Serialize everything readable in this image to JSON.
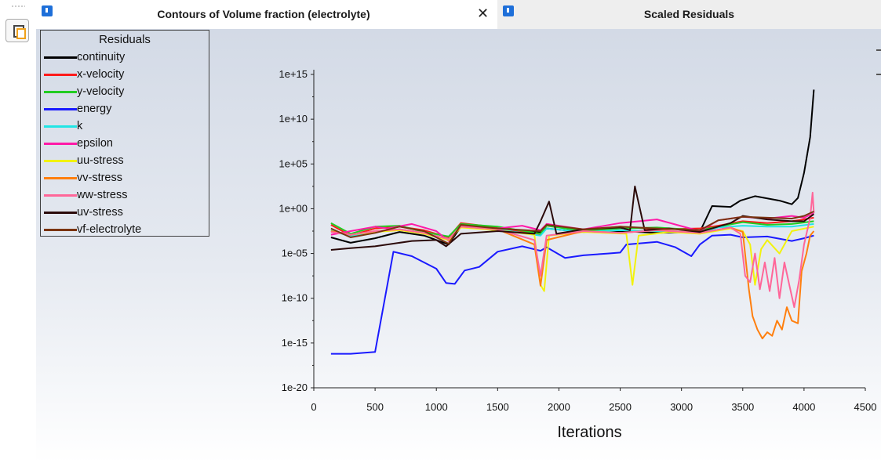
{
  "tabs": [
    {
      "title": "Contours of Volume fraction (electrolyte)",
      "active": true,
      "closable": true,
      "icon": "fluent-window-icon"
    },
    {
      "title": "Scaled Residuals",
      "active": false,
      "icon": "fluent-window-icon"
    }
  ],
  "toolbar": {
    "icon": "copy-windows-icon"
  },
  "colors": {
    "continuity": "#000000",
    "x-velocity": "#ff1a1a",
    "y-velocity": "#22cc22",
    "energy": "#1a1aff",
    "k": "#22e5e5",
    "epsilon": "#ff1aa8",
    "uu-stress": "#f2f20d",
    "vv-stress": "#ff7f0e",
    "ww-stress": "#ff6699",
    "uv-stress": "#2b0a0a",
    "vf-electrolyte": "#7a3310"
  },
  "chart_data": {
    "type": "line",
    "legend_title": "Residuals",
    "legend_position": "top-left",
    "xlabel": "Iterations",
    "ylabel": "",
    "xlim": [
      0,
      4500
    ],
    "y_scale": "log",
    "ylim_exponent": [
      -20,
      16
    ],
    "x_ticks": [
      "0",
      "500",
      "1000",
      "1500",
      "2000",
      "2500",
      "3000",
      "3500",
      "4000",
      "4500"
    ],
    "y_ticks": [
      "1e-20",
      "1e-15",
      "1e-10",
      "1e-05",
      "1e+00",
      "1e+05",
      "1e+10",
      "1e+15"
    ],
    "y_tick_exponents": [
      -20,
      -15,
      -10,
      -5,
      0,
      5,
      10,
      15
    ],
    "x_tick_values": [
      0,
      500,
      1000,
      1500,
      2000,
      2500,
      3000,
      3500,
      4000,
      4500
    ],
    "series": [
      {
        "name": "continuity",
        "points": [
          [
            140,
            -3.2
          ],
          [
            300,
            -3.8
          ],
          [
            500,
            -3.3
          ],
          [
            700,
            -2.6
          ],
          [
            900,
            -3.0
          ],
          [
            1100,
            -4.0
          ],
          [
            1200,
            -2.0
          ],
          [
            1500,
            -2.4
          ],
          [
            1850,
            -2.6
          ],
          [
            1900,
            -2.2
          ],
          [
            2200,
            -2.6
          ],
          [
            2500,
            -2.5
          ],
          [
            2800,
            -2.7
          ],
          [
            3150,
            -2.6
          ],
          [
            3250,
            0.3
          ],
          [
            3400,
            0.2
          ],
          [
            3480,
            0.9
          ],
          [
            3600,
            1.4
          ],
          [
            3800,
            0.9
          ],
          [
            3900,
            0.5
          ],
          [
            3950,
            1.2
          ],
          [
            4000,
            4.0
          ],
          [
            4050,
            8.0
          ],
          [
            4080,
            13.3
          ]
        ]
      },
      {
        "name": "x-velocity",
        "points": [
          [
            140,
            -1.8
          ],
          [
            300,
            -3.0
          ],
          [
            500,
            -2.2
          ],
          [
            700,
            -2.0
          ],
          [
            900,
            -2.4
          ],
          [
            1100,
            -3.2
          ],
          [
            1200,
            -1.6
          ],
          [
            1500,
            -2.1
          ],
          [
            1850,
            -2.9
          ],
          [
            1900,
            -1.7
          ],
          [
            2200,
            -2.4
          ],
          [
            2500,
            -2.0
          ],
          [
            2800,
            -2.3
          ],
          [
            3150,
            -2.2
          ],
          [
            3300,
            -1.9
          ],
          [
            3500,
            -1.4
          ],
          [
            3700,
            -1.6
          ],
          [
            3900,
            -1.4
          ],
          [
            4080,
            -1.0
          ]
        ]
      },
      {
        "name": "y-velocity",
        "points": [
          [
            140,
            -1.6
          ],
          [
            300,
            -2.8
          ],
          [
            500,
            -2.0
          ],
          [
            700,
            -1.9
          ],
          [
            900,
            -2.6
          ],
          [
            1100,
            -3.1
          ],
          [
            1200,
            -1.7
          ],
          [
            1500,
            -2.0
          ],
          [
            1850,
            -2.8
          ],
          [
            1900,
            -1.9
          ],
          [
            2200,
            -2.5
          ],
          [
            2500,
            -2.2
          ],
          [
            2800,
            -2.1
          ],
          [
            3150,
            -2.4
          ],
          [
            3300,
            -2.0
          ],
          [
            3500,
            -1.5
          ],
          [
            3700,
            -1.8
          ],
          [
            3900,
            -1.7
          ],
          [
            4080,
            -1.4
          ]
        ]
      },
      {
        "name": "energy",
        "points": [
          [
            140,
            -16.2
          ],
          [
            300,
            -16.2
          ],
          [
            500,
            -16.0
          ],
          [
            650,
            -4.8
          ],
          [
            800,
            -5.3
          ],
          [
            1000,
            -6.7
          ],
          [
            1080,
            -8.3
          ],
          [
            1150,
            -8.4
          ],
          [
            1230,
            -6.9
          ],
          [
            1350,
            -6.5
          ],
          [
            1500,
            -4.8
          ],
          [
            1700,
            -4.2
          ],
          [
            1850,
            -4.7
          ],
          [
            1900,
            -4.3
          ],
          [
            2050,
            -5.5
          ],
          [
            2200,
            -5.2
          ],
          [
            2400,
            -5.0
          ],
          [
            2500,
            -4.9
          ],
          [
            2550,
            -4.0
          ],
          [
            2800,
            -3.7
          ],
          [
            2950,
            -4.3
          ],
          [
            3080,
            -5.3
          ],
          [
            3150,
            -4.0
          ],
          [
            3250,
            -3.0
          ],
          [
            3400,
            -2.9
          ],
          [
            3500,
            -3.2
          ],
          [
            3700,
            -3.1
          ],
          [
            3900,
            -3.6
          ],
          [
            4000,
            -3.3
          ],
          [
            4080,
            -3.0
          ]
        ]
      },
      {
        "name": "k",
        "points": [
          [
            140,
            -2.4
          ],
          [
            300,
            -3.1
          ],
          [
            500,
            -2.5
          ],
          [
            700,
            -2.3
          ],
          [
            900,
            -2.7
          ],
          [
            1100,
            -3.4
          ],
          [
            1200,
            -2.0
          ],
          [
            1500,
            -2.3
          ],
          [
            1850,
            -3.0
          ],
          [
            1900,
            -2.2
          ],
          [
            2200,
            -2.6
          ],
          [
            2500,
            -2.4
          ],
          [
            2800,
            -2.5
          ],
          [
            3150,
            -2.7
          ],
          [
            3300,
            -2.1
          ],
          [
            3500,
            -1.9
          ],
          [
            3700,
            -2.0
          ],
          [
            3900,
            -2.0
          ],
          [
            4080,
            -1.7
          ]
        ]
      },
      {
        "name": "epsilon",
        "points": [
          [
            140,
            -2.9
          ],
          [
            300,
            -2.5
          ],
          [
            500,
            -2.0
          ],
          [
            600,
            -2.2
          ],
          [
            800,
            -1.7
          ],
          [
            1000,
            -2.5
          ],
          [
            1100,
            -3.6
          ],
          [
            1200,
            -1.9
          ],
          [
            1500,
            -2.2
          ],
          [
            1700,
            -1.9
          ],
          [
            1850,
            -2.4
          ],
          [
            1900,
            -1.7
          ],
          [
            2200,
            -2.3
          ],
          [
            2500,
            -1.6
          ],
          [
            2800,
            -1.2
          ],
          [
            3150,
            -2.5
          ],
          [
            3300,
            -1.3
          ],
          [
            3500,
            -0.9
          ],
          [
            3700,
            -1.1
          ],
          [
            3900,
            -0.8
          ],
          [
            4000,
            -1.0
          ],
          [
            4080,
            -0.5
          ]
        ]
      },
      {
        "name": "uu-stress",
        "points": [
          [
            140,
            -2.5
          ],
          [
            300,
            -2.9
          ],
          [
            500,
            -2.6
          ],
          [
            700,
            -2.4
          ],
          [
            900,
            -2.8
          ],
          [
            1100,
            -3.5
          ],
          [
            1200,
            -2.1
          ],
          [
            1500,
            -2.4
          ],
          [
            1800,
            -2.9
          ],
          [
            1850,
            -8.5
          ],
          [
            1880,
            -9.2
          ],
          [
            1920,
            -3.0
          ],
          [
            2200,
            -2.6
          ],
          [
            2550,
            -2.8
          ],
          [
            2600,
            -8.5
          ],
          [
            2650,
            -3.0
          ],
          [
            2900,
            -2.6
          ],
          [
            3150,
            -2.8
          ],
          [
            3400,
            -2.2
          ],
          [
            3500,
            -2.5
          ],
          [
            3560,
            -4.0
          ],
          [
            3600,
            -8.5
          ],
          [
            3650,
            -4.5
          ],
          [
            3700,
            -3.5
          ],
          [
            3800,
            -5.0
          ],
          [
            3900,
            -2.5
          ],
          [
            4080,
            -2.0
          ]
        ]
      },
      {
        "name": "vv-stress",
        "points": [
          [
            140,
            -2.5
          ],
          [
            300,
            -2.9
          ],
          [
            500,
            -2.5
          ],
          [
            700,
            -2.3
          ],
          [
            900,
            -2.7
          ],
          [
            1100,
            -3.4
          ],
          [
            1200,
            -2.0
          ],
          [
            1500,
            -2.3
          ],
          [
            1800,
            -4.0
          ],
          [
            1850,
            -8.6
          ],
          [
            1900,
            -3.5
          ],
          [
            2200,
            -2.5
          ],
          [
            2500,
            -2.7
          ],
          [
            2800,
            -2.4
          ],
          [
            3150,
            -2.7
          ],
          [
            3400,
            -2.1
          ],
          [
            3500,
            -2.6
          ],
          [
            3550,
            -9.0
          ],
          [
            3580,
            -12.0
          ],
          [
            3620,
            -13.5
          ],
          [
            3660,
            -14.5
          ],
          [
            3700,
            -13.8
          ],
          [
            3740,
            -14.2
          ],
          [
            3780,
            -12.5
          ],
          [
            3820,
            -13.5
          ],
          [
            3860,
            -11.0
          ],
          [
            3900,
            -12.5
          ],
          [
            3950,
            -12.8
          ],
          [
            3980,
            -7.0
          ],
          [
            4020,
            -5.0
          ],
          [
            4050,
            -3.0
          ],
          [
            4080,
            -2.5
          ]
        ]
      },
      {
        "name": "ww-stress",
        "points": [
          [
            140,
            -2.6
          ],
          [
            300,
            -2.9
          ],
          [
            500,
            -2.5
          ],
          [
            700,
            -2.3
          ],
          [
            900,
            -2.7
          ],
          [
            1100,
            -3.4
          ],
          [
            1200,
            -2.0
          ],
          [
            1500,
            -2.3
          ],
          [
            1800,
            -3.5
          ],
          [
            1850,
            -7.5
          ],
          [
            1900,
            -3.0
          ],
          [
            2200,
            -2.5
          ],
          [
            2500,
            -2.7
          ],
          [
            2800,
            -2.4
          ],
          [
            3150,
            -2.7
          ],
          [
            3400,
            -2.1
          ],
          [
            3480,
            -2.8
          ],
          [
            3520,
            -7.5
          ],
          [
            3560,
            -8.2
          ],
          [
            3600,
            -5.0
          ],
          [
            3640,
            -9.0
          ],
          [
            3680,
            -6.0
          ],
          [
            3720,
            -9.2
          ],
          [
            3760,
            -5.5
          ],
          [
            3800,
            -10.0
          ],
          [
            3840,
            -6.0
          ],
          [
            3880,
            -8.5
          ],
          [
            3920,
            -11.0
          ],
          [
            3960,
            -8.0
          ],
          [
            4000,
            -4.0
          ],
          [
            4050,
            -1.0
          ],
          [
            4070,
            1.8
          ],
          [
            4080,
            -0.5
          ]
        ]
      },
      {
        "name": "uv-stress",
        "points": [
          [
            140,
            -4.6
          ],
          [
            300,
            -4.4
          ],
          [
            500,
            -4.2
          ],
          [
            650,
            -3.9
          ],
          [
            800,
            -3.6
          ],
          [
            1000,
            -3.5
          ],
          [
            1080,
            -4.2
          ],
          [
            1200,
            -2.8
          ],
          [
            1500,
            -2.5
          ],
          [
            1800,
            -2.8
          ],
          [
            1850,
            -1.4
          ],
          [
            1920,
            0.8
          ],
          [
            1980,
            -2.8
          ],
          [
            2200,
            -2.3
          ],
          [
            2500,
            -2.1
          ],
          [
            2580,
            -2.4
          ],
          [
            2620,
            2.5
          ],
          [
            2700,
            -2.4
          ],
          [
            2900,
            -2.2
          ],
          [
            3150,
            -2.6
          ],
          [
            3400,
            -1.6
          ],
          [
            3500,
            -0.8
          ],
          [
            3700,
            -1.2
          ],
          [
            3900,
            -1.4
          ],
          [
            4000,
            -1.4
          ],
          [
            4080,
            -0.6
          ]
        ]
      },
      {
        "name": "vf-electrolyte",
        "points": [
          [
            140,
            -2.2
          ],
          [
            300,
            -3.2
          ],
          [
            500,
            -2.7
          ],
          [
            700,
            -2.0
          ],
          [
            900,
            -2.5
          ],
          [
            1100,
            -3.9
          ],
          [
            1200,
            -1.8
          ],
          [
            1500,
            -2.2
          ],
          [
            1850,
            -2.5
          ],
          [
            1900,
            -1.8
          ],
          [
            2200,
            -2.3
          ],
          [
            2500,
            -2.0
          ],
          [
            2800,
            -2.2
          ],
          [
            3150,
            -2.4
          ],
          [
            3300,
            -1.3
          ],
          [
            3500,
            -0.9
          ],
          [
            3700,
            -1.0
          ],
          [
            3900,
            -1.1
          ],
          [
            4000,
            -0.8
          ],
          [
            4080,
            -0.3
          ]
        ]
      }
    ]
  },
  "scrollbar": {
    "right_edge_marks": true
  }
}
